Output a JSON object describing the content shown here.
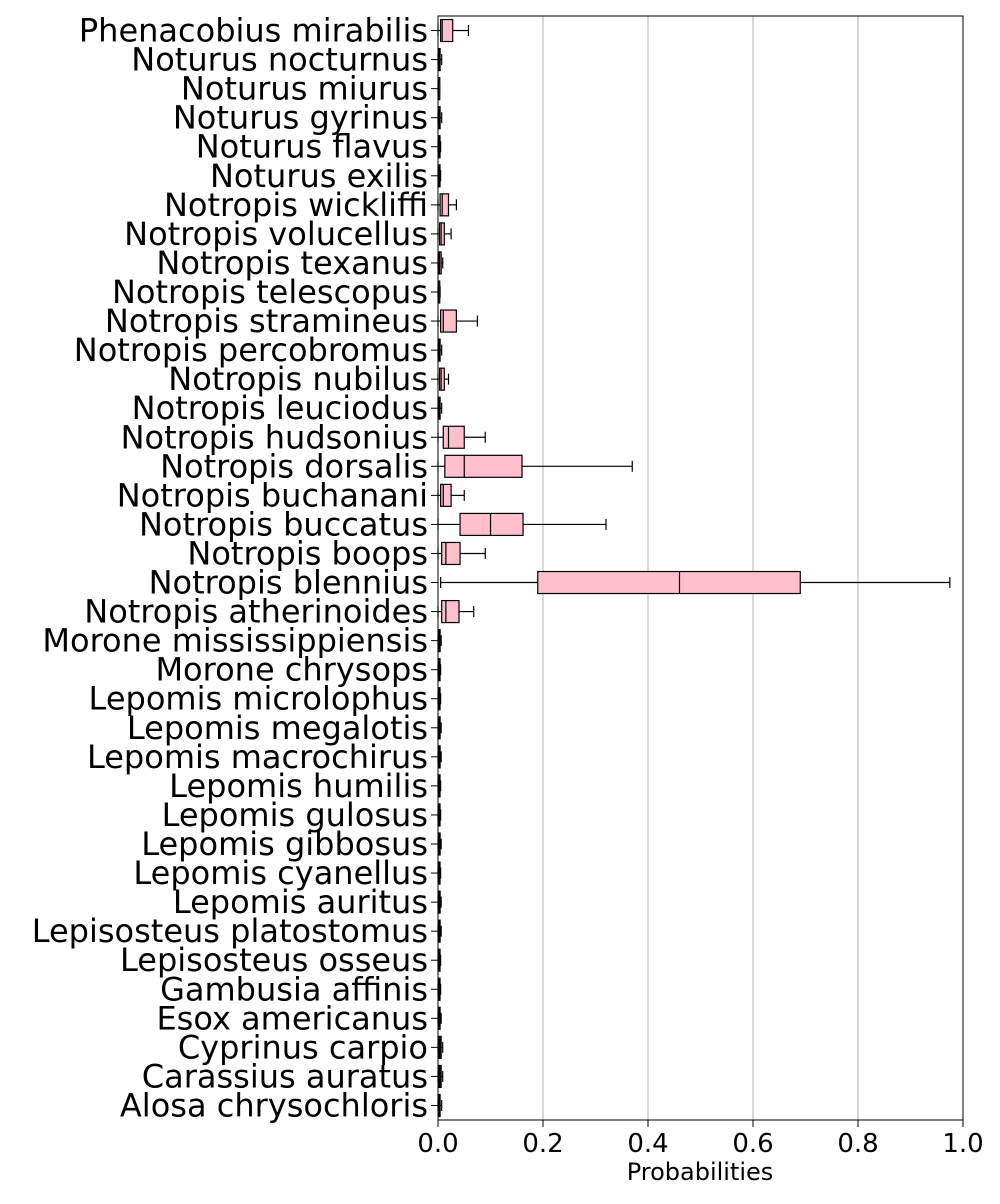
{
  "chart_data": {
    "type": "boxplot",
    "orientation": "horizontal",
    "xlabel": "Probabilities",
    "xlim": [
      0,
      1
    ],
    "xticks": [
      0.0,
      0.2,
      0.4,
      0.6,
      0.8,
      1.0
    ],
    "xtick_labels": [
      "0.0",
      "0.2",
      "0.4",
      "0.6",
      "0.8",
      "1.0"
    ],
    "grid": "vertical",
    "box_color": "#ffc0cb",
    "categories": [
      {
        "name": "Phenacobius mirabilis",
        "whisker_low": 0.0,
        "q1": 0.005,
        "median": 0.008,
        "q3": 0.028,
        "whisker_high": 0.058
      },
      {
        "name": "Noturus nocturnus",
        "whisker_low": 0.0,
        "q1": 0.001,
        "median": 0.002,
        "q3": 0.004,
        "whisker_high": 0.007
      },
      {
        "name": "Noturus miurus",
        "whisker_low": 0.0,
        "q1": 0.0005,
        "median": 0.001,
        "q3": 0.002,
        "whisker_high": 0.003
      },
      {
        "name": "Noturus gyrinus",
        "whisker_low": 0.0,
        "q1": 0.001,
        "median": 0.002,
        "q3": 0.004,
        "whisker_high": 0.007
      },
      {
        "name": "Noturus flavus",
        "whisker_low": 0.0,
        "q1": 0.001,
        "median": 0.002,
        "q3": 0.003,
        "whisker_high": 0.005
      },
      {
        "name": "Noturus exilis",
        "whisker_low": 0.0,
        "q1": 0.001,
        "median": 0.002,
        "q3": 0.003,
        "whisker_high": 0.005
      },
      {
        "name": "Notropis wickliffi",
        "whisker_low": 0.0,
        "q1": 0.004,
        "median": 0.008,
        "q3": 0.02,
        "whisker_high": 0.035
      },
      {
        "name": "Notropis volucellus",
        "whisker_low": 0.0,
        "q1": 0.003,
        "median": 0.006,
        "q3": 0.012,
        "whisker_high": 0.025
      },
      {
        "name": "Notropis texanus",
        "whisker_low": 0.0,
        "q1": 0.002,
        "median": 0.003,
        "q3": 0.006,
        "whisker_high": 0.009
      },
      {
        "name": "Notropis telescopus",
        "whisker_low": 0.0,
        "q1": 0.0005,
        "median": 0.001,
        "q3": 0.002,
        "whisker_high": 0.004
      },
      {
        "name": "Notropis stramineus",
        "whisker_low": 0.0,
        "q1": 0.005,
        "median": 0.01,
        "q3": 0.035,
        "whisker_high": 0.075
      },
      {
        "name": "Notropis percobromus",
        "whisker_low": 0.0,
        "q1": 0.001,
        "median": 0.002,
        "q3": 0.004,
        "whisker_high": 0.007
      },
      {
        "name": "Notropis nubilus",
        "whisker_low": 0.0,
        "q1": 0.003,
        "median": 0.006,
        "q3": 0.012,
        "whisker_high": 0.02
      },
      {
        "name": "Notropis leuciodus",
        "whisker_low": 0.0,
        "q1": 0.001,
        "median": 0.002,
        "q3": 0.004,
        "whisker_high": 0.007
      },
      {
        "name": "Notropis hudsonius",
        "whisker_low": 0.0,
        "q1": 0.01,
        "median": 0.02,
        "q3": 0.05,
        "whisker_high": 0.09
      },
      {
        "name": "Notropis dorsalis",
        "whisker_low": 0.0,
        "q1": 0.013,
        "median": 0.05,
        "q3": 0.16,
        "whisker_high": 0.37
      },
      {
        "name": "Notropis buchanani",
        "whisker_low": 0.0,
        "q1": 0.005,
        "median": 0.01,
        "q3": 0.025,
        "whisker_high": 0.05
      },
      {
        "name": "Notropis buccatus",
        "whisker_low": 0.0,
        "q1": 0.042,
        "median": 0.1,
        "q3": 0.162,
        "whisker_high": 0.32
      },
      {
        "name": "Notropis boops",
        "whisker_low": 0.0,
        "q1": 0.007,
        "median": 0.015,
        "q3": 0.042,
        "whisker_high": 0.09
      },
      {
        "name": "Notropis blennius",
        "whisker_low": 0.005,
        "q1": 0.19,
        "median": 0.46,
        "q3": 0.69,
        "whisker_high": 0.975
      },
      {
        "name": "Notropis atherinoides",
        "whisker_low": 0.0,
        "q1": 0.007,
        "median": 0.015,
        "q3": 0.04,
        "whisker_high": 0.068
      },
      {
        "name": "Morone mississippiensis",
        "whisker_low": 0.0,
        "q1": 0.001,
        "median": 0.002,
        "q3": 0.004,
        "whisker_high": 0.006
      },
      {
        "name": "Morone chrysops",
        "whisker_low": 0.0,
        "q1": 0.001,
        "median": 0.002,
        "q3": 0.003,
        "whisker_high": 0.005
      },
      {
        "name": "Lepomis microlophus",
        "whisker_low": 0.0,
        "q1": 0.001,
        "median": 0.002,
        "q3": 0.003,
        "whisker_high": 0.005
      },
      {
        "name": "Lepomis megalotis",
        "whisker_low": 0.0,
        "q1": 0.001,
        "median": 0.002,
        "q3": 0.004,
        "whisker_high": 0.006
      },
      {
        "name": "Lepomis macrochirus",
        "whisker_low": 0.0,
        "q1": 0.001,
        "median": 0.002,
        "q3": 0.004,
        "whisker_high": 0.006
      },
      {
        "name": "Lepomis humilis",
        "whisker_low": 0.0,
        "q1": 0.001,
        "median": 0.002,
        "q3": 0.003,
        "whisker_high": 0.005
      },
      {
        "name": "Lepomis gulosus",
        "whisker_low": 0.0,
        "q1": 0.001,
        "median": 0.002,
        "q3": 0.003,
        "whisker_high": 0.005
      },
      {
        "name": "Lepomis gibbosus",
        "whisker_low": 0.0,
        "q1": 0.001,
        "median": 0.002,
        "q3": 0.004,
        "whisker_high": 0.006
      },
      {
        "name": "Lepomis cyanellus",
        "whisker_low": 0.0,
        "q1": 0.001,
        "median": 0.002,
        "q3": 0.003,
        "whisker_high": 0.005
      },
      {
        "name": "Lepomis auritus",
        "whisker_low": 0.0,
        "q1": 0.001,
        "median": 0.002,
        "q3": 0.004,
        "whisker_high": 0.006
      },
      {
        "name": "Lepisosteus platostomus",
        "whisker_low": 0.0,
        "q1": 0.001,
        "median": 0.002,
        "q3": 0.004,
        "whisker_high": 0.006
      },
      {
        "name": "Lepisosteus osseus",
        "whisker_low": 0.0,
        "q1": 0.001,
        "median": 0.002,
        "q3": 0.003,
        "whisker_high": 0.005
      },
      {
        "name": "Gambusia affinis",
        "whisker_low": 0.0,
        "q1": 0.001,
        "median": 0.002,
        "q3": 0.003,
        "whisker_high": 0.005
      },
      {
        "name": "Esox americanus",
        "whisker_low": 0.0,
        "q1": 0.001,
        "median": 0.002,
        "q3": 0.004,
        "whisker_high": 0.006
      },
      {
        "name": "Cyprinus carpio",
        "whisker_low": 0.0,
        "q1": 0.002,
        "median": 0.004,
        "q3": 0.006,
        "whisker_high": 0.009
      },
      {
        "name": "Carassius auratus",
        "whisker_low": 0.0,
        "q1": 0.002,
        "median": 0.004,
        "q3": 0.006,
        "whisker_high": 0.009
      },
      {
        "name": "Alosa chrysochloris",
        "whisker_low": 0.0,
        "q1": 0.001,
        "median": 0.002,
        "q3": 0.004,
        "whisker_high": 0.007
      }
    ]
  }
}
